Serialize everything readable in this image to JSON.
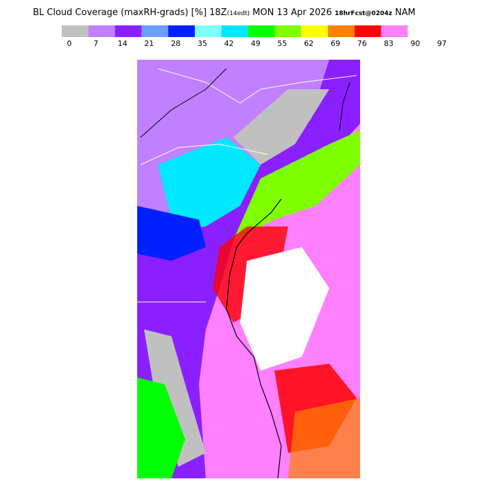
{
  "header": {
    "title": "BL Cloud Coverage (maxRH-grads) [%] 18Z",
    "time_zone": "(14edt)",
    "date": " MON 13 Apr 2026 ",
    "forecast": "18hrFcst@0204z",
    "model": " NAM"
  },
  "colorbar": {
    "colors": [
      "#c0c0c0",
      "#c080ff",
      "#8a20ff",
      "#6aa0ff",
      "#0020ff",
      "#80ffff",
      "#00e8ff",
      "#00ff00",
      "#80ff00",
      "#ffff00",
      "#ff8000",
      "#ff0000",
      "#ff80ff"
    ],
    "labels": [
      0,
      7,
      14,
      21,
      28,
      35,
      42,
      49,
      55,
      62,
      69,
      76,
      83,
      90,
      97
    ]
  }
}
